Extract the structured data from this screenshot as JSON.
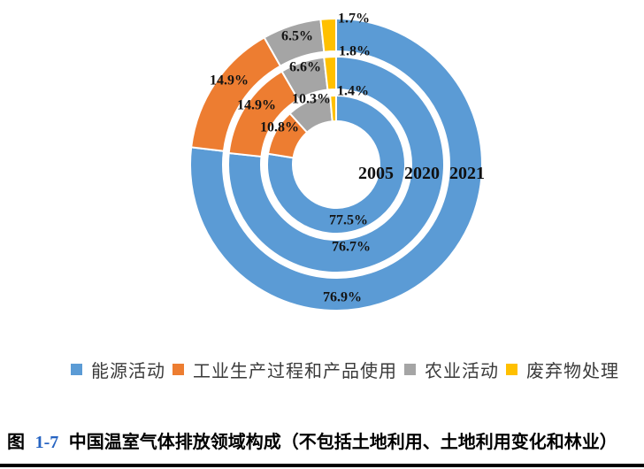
{
  "figure": {
    "caption": {
      "prefix": "图",
      "number": "1-7",
      "number_color": "#2563C2",
      "title": "中国温室气体排放领域构成（不包括土地利用、土地利用变化和林业）"
    }
  },
  "legend": {
    "items": [
      {
        "label": "能源活动",
        "color": "#5B9BD5"
      },
      {
        "label": "工业生产过程和产品使用",
        "color": "#ED7D31"
      },
      {
        "label": "农业活动",
        "color": "#A5A5A5"
      },
      {
        "label": "废弃物处理",
        "color": "#FFC000"
      }
    ]
  },
  "chart_data": {
    "type": "donut",
    "title": "",
    "unit": "%",
    "direction": "clockwise",
    "start_angle_deg": 0,
    "legend_position": "bottom",
    "categories": [
      "能源活动",
      "工业生产过程和产品使用",
      "农业活动",
      "废弃物处理"
    ],
    "colors": [
      "#5B9BD5",
      "#ED7D31",
      "#A5A5A5",
      "#FFC000"
    ],
    "series": [
      {
        "name": "2005",
        "ring": "inner",
        "values": [
          77.5,
          10.8,
          10.3,
          1.4
        ]
      },
      {
        "name": "2020",
        "ring": "middle",
        "values": [
          76.7,
          14.9,
          6.6,
          1.8
        ]
      },
      {
        "name": "2021",
        "ring": "outer",
        "values": [
          76.9,
          14.9,
          6.5,
          1.7
        ]
      }
    ]
  }
}
